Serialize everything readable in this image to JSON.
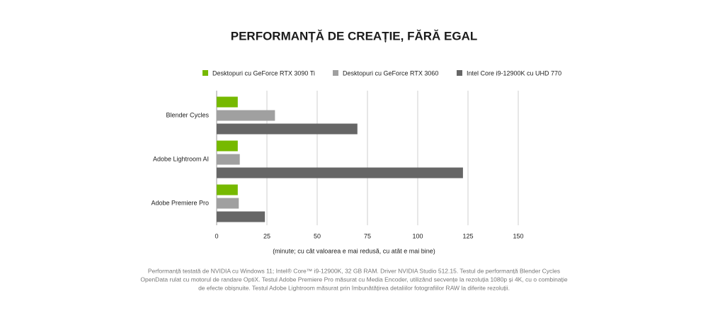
{
  "chart_data": {
    "type": "barh",
    "title": "PERFORMANȚĂ DE CREAȚIE, FĂRĂ EGAL",
    "x_label": "(minute; cu cât valoarea e mai redusă, cu atât e mai bine)",
    "categories": [
      "Blender Cycles",
      "Adobe Lightroom AI",
      "Adobe Premiere Pro"
    ],
    "series": [
      {
        "name": "Desktopuri cu GeForce RTX 3090 Ti",
        "color": "#76b900",
        "values": [
          10.5,
          10.5,
          10.5
        ]
      },
      {
        "name": "Desktopuri cu GeForce RTX 3060",
        "color": "#a0a0a0",
        "values": [
          29,
          11.5,
          11
        ]
      },
      {
        "name": "Intel Core i9-12900K cu UHD 770",
        "color": "#666666",
        "values": [
          70,
          122.5,
          24
        ]
      }
    ],
    "xlim": [
      0,
      150
    ],
    "xticks": [
      0,
      25,
      50,
      75,
      100,
      125,
      150
    ],
    "grid": true,
    "legend": "top",
    "notes": [
      "Performanță testată de NVIDIA cu Windows 11; Intel® Core™ i9-12900K, 32 GB RAM. Driver NVIDIA Studio 512.15. Testul de performanță Blender Cycles",
      "OpenData rulat cu motorul de randare OptiX. Testul Adobe Premiere Pro măsurat cu Media Encoder, utilizând secvențe la rezoluția 1080p și 4K, cu o combinație",
      "de efecte obișnuite. Testul Adobe Lightroom măsurat prin îmbunătățirea detaliilor fotografiilor RAW la diferite rezoluții."
    ]
  }
}
